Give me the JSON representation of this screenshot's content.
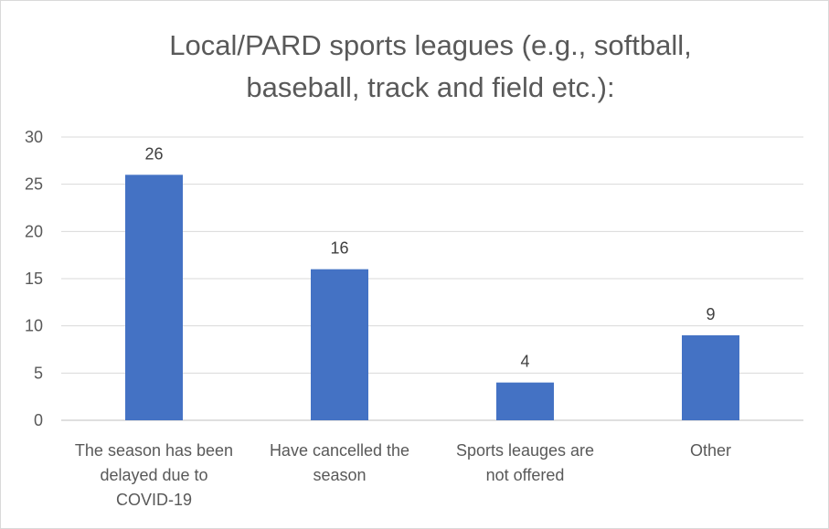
{
  "chart_data": {
    "type": "bar",
    "title_lines": [
      "Local/PARD sports leagues (e.g., softball,",
      "baseball, track and field etc.):"
    ],
    "categories": [
      [
        "The season has been",
        "delayed due to",
        "COVID-19"
      ],
      [
        "Have cancelled the",
        "season"
      ],
      [
        "Sports leauges are",
        "not offered"
      ],
      [
        "Other"
      ]
    ],
    "values": [
      26,
      16,
      4,
      9
    ],
    "ylim": [
      0,
      30
    ],
    "yticks": [
      0,
      5,
      10,
      15,
      20,
      25,
      30
    ],
    "grid": true,
    "legend": "none",
    "bar_color": "#4472c4"
  }
}
